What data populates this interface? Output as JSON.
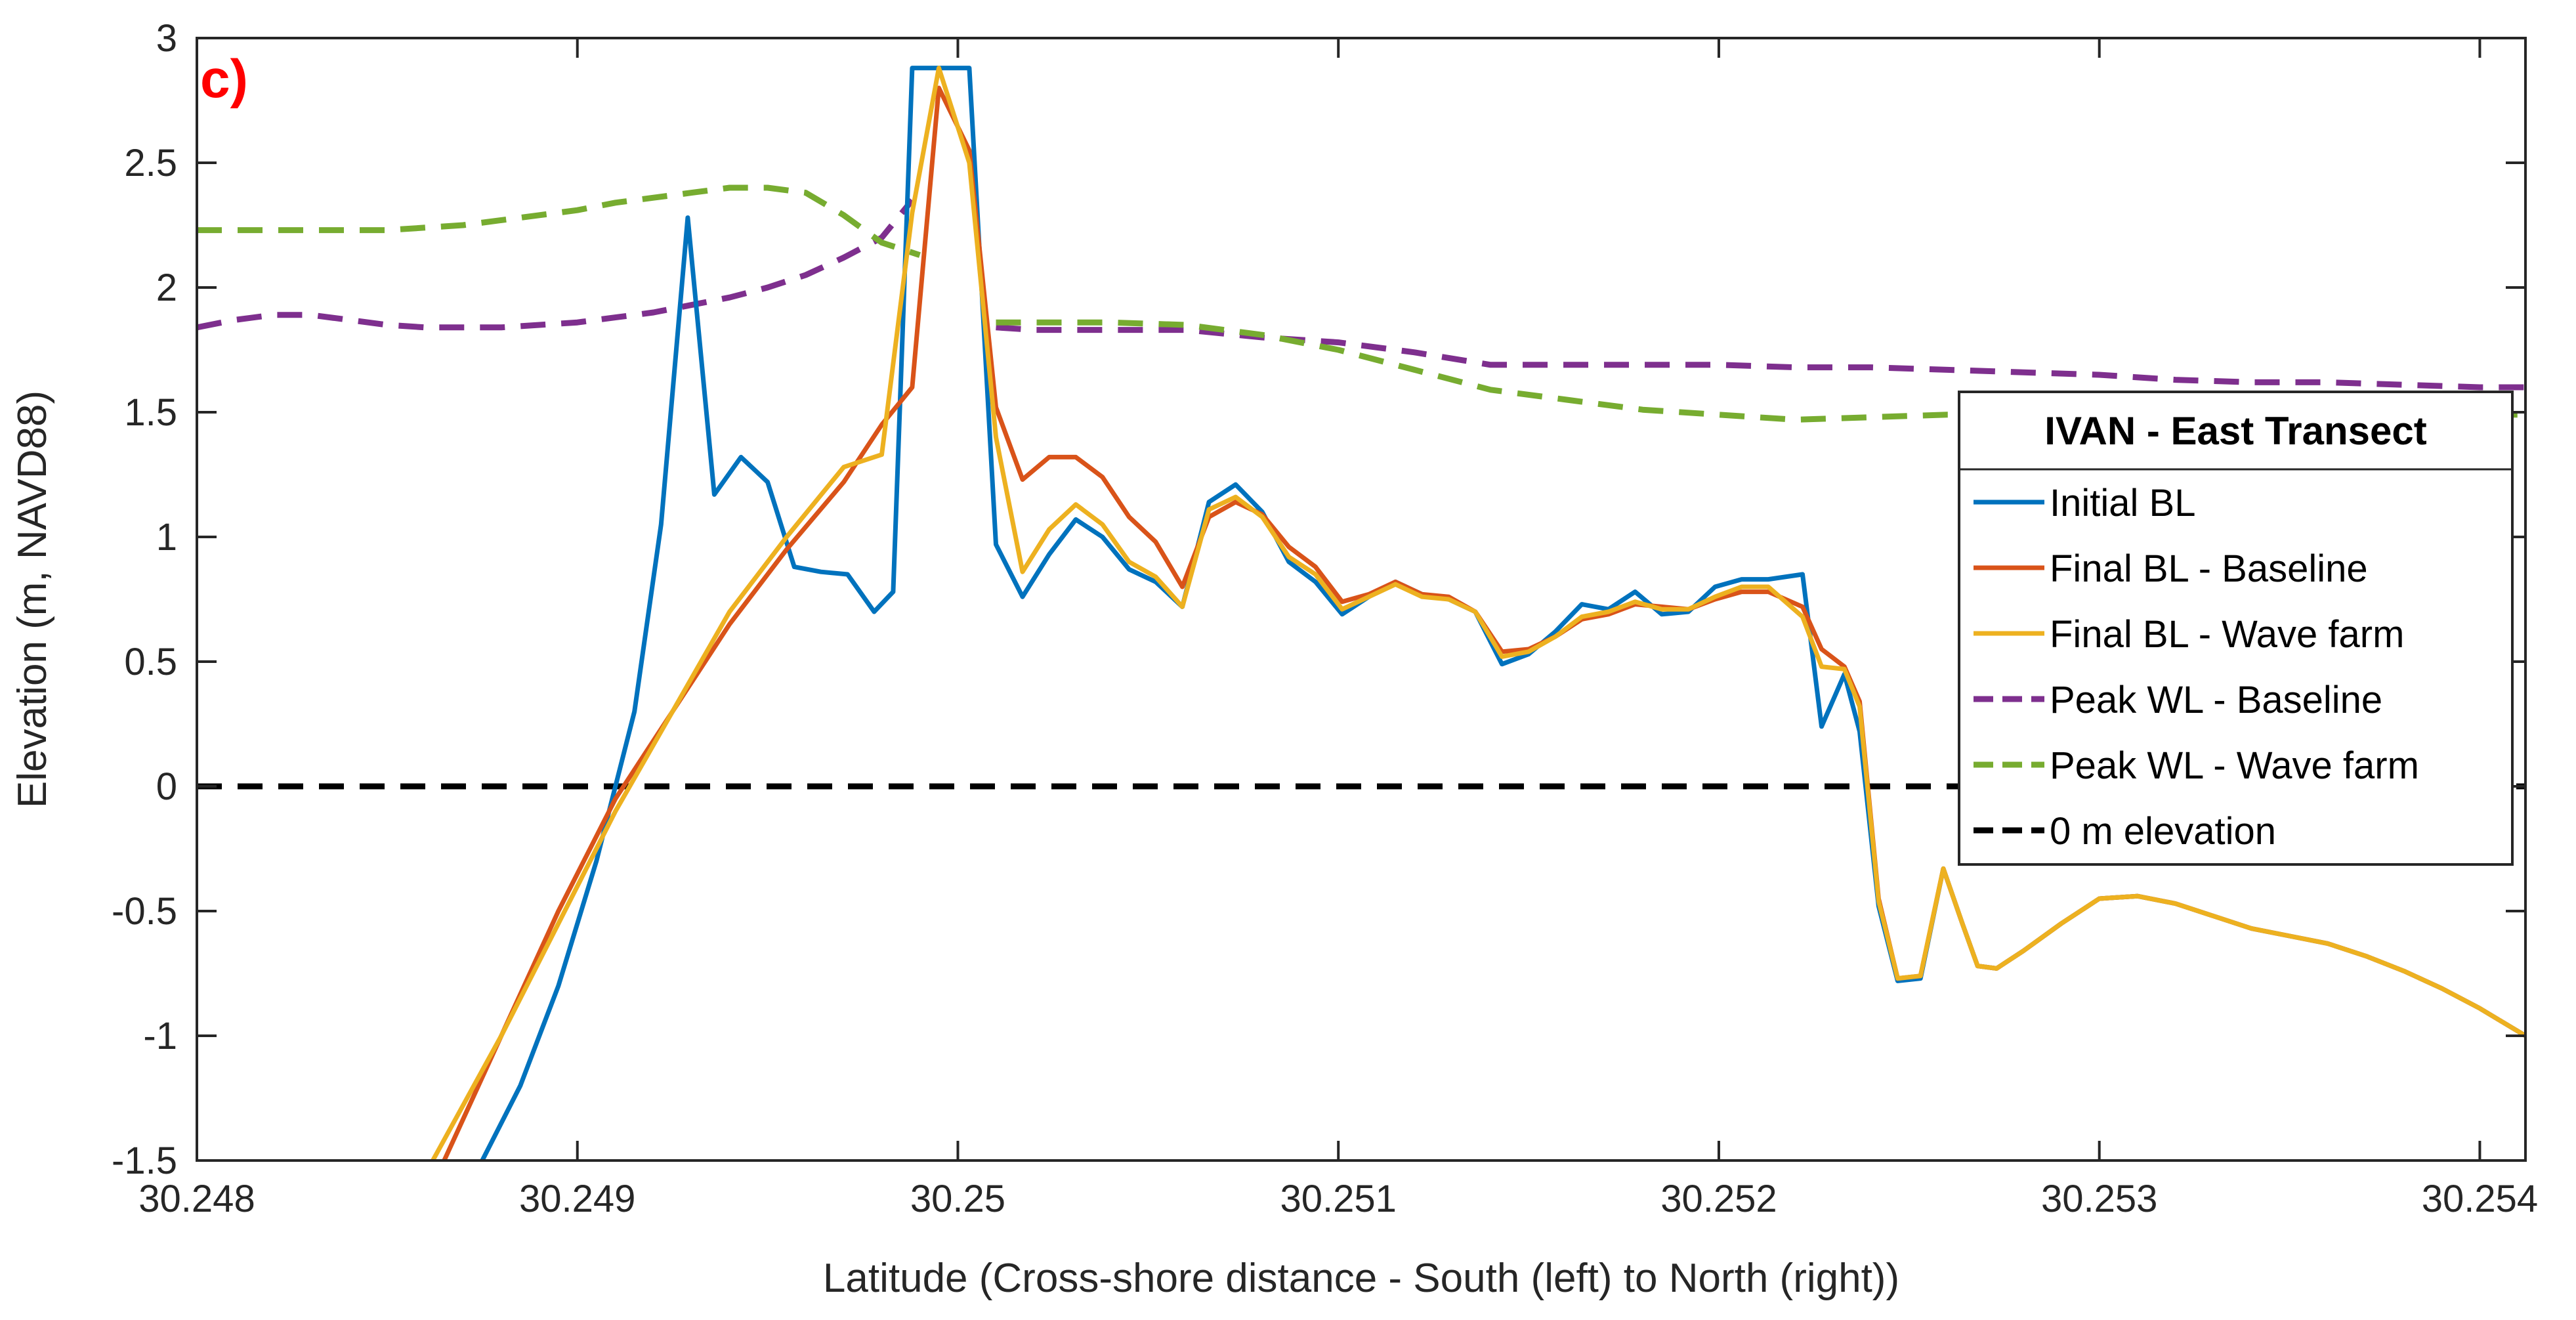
{
  "chart_data": {
    "type": "line",
    "panel_label": "c)",
    "xlabel": "Latitude (Cross-shore distance - South (left) to North (right))",
    "ylabel": "Elevation (m, NAVD88)",
    "xlim": [
      30.248,
      30.25412
    ],
    "ylim": [
      -1.5,
      3
    ],
    "x_ticks": [
      30.248,
      30.249,
      30.25,
      30.251,
      30.252,
      30.253,
      30.254
    ],
    "x_tick_labels": [
      "30.248",
      "30.249",
      "30.25",
      "30.251",
      "30.252",
      "30.253",
      "30.254"
    ],
    "y_ticks": [
      -1.5,
      -1,
      -0.5,
      0,
      0.5,
      1,
      1.5,
      2,
      2.5,
      3
    ],
    "y_tick_labels": [
      "-1.5",
      "-1",
      "-0.5",
      "0",
      "0.5",
      "1",
      "1.5",
      "2",
      "2.5",
      "3"
    ],
    "grid": false,
    "legend": {
      "title": "IVAN - East Transect",
      "placement": "right"
    },
    "series": [
      {
        "name": "Initial BL",
        "color": "#0072BD",
        "style": "solid",
        "x": [
          30.24875,
          30.24885,
          30.24895,
          30.24905,
          30.24915,
          30.24922,
          30.24929,
          30.24936,
          30.24943,
          30.2495,
          30.24957,
          30.24964,
          30.24971,
          30.24978,
          30.24983,
          30.24988,
          30.24993,
          30.25003,
          30.2501,
          30.25017,
          30.25024,
          30.25031,
          30.25038,
          30.25045,
          30.25052,
          30.25059,
          30.25066,
          30.25073,
          30.2508,
          30.25087,
          30.25094,
          30.25101,
          30.25108,
          30.25115,
          30.25122,
          30.25129,
          30.25136,
          30.25143,
          30.2515,
          30.25157,
          30.25164,
          30.25171,
          30.25178,
          30.25185,
          30.25192,
          30.25199,
          30.25206,
          30.25213,
          30.25222,
          30.25227,
          30.25233,
          30.25237,
          30.25242,
          30.25247,
          30.25253,
          30.25259,
          30.25264,
          30.25268,
          30.25273,
          30.2528,
          30.2529,
          30.253,
          30.2531,
          30.2532,
          30.2533,
          30.2534,
          30.2535,
          30.2536,
          30.2537,
          30.2538,
          30.2539,
          30.254,
          30.25412
        ],
        "y": [
          -1.5,
          -1.2,
          -0.8,
          -0.3,
          0.3,
          1.05,
          2.28,
          1.17,
          1.32,
          1.22,
          0.88,
          0.86,
          0.85,
          0.7,
          0.78,
          2.88,
          2.88,
          2.88,
          0.97,
          0.76,
          0.93,
          1.07,
          1.0,
          0.87,
          0.82,
          0.72,
          1.14,
          1.21,
          1.1,
          0.9,
          0.82,
          0.69,
          0.76,
          0.82,
          0.77,
          0.75,
          0.7,
          0.49,
          0.53,
          0.62,
          0.73,
          0.71,
          0.78,
          0.69,
          0.7,
          0.8,
          0.83,
          0.83,
          0.85,
          0.24,
          0.45,
          0.22,
          -0.48,
          -0.78,
          -0.77,
          -0.33,
          -0.55,
          -0.72,
          -0.73,
          -0.66,
          -0.55,
          -0.45,
          -0.44,
          -0.47,
          -0.52,
          -0.57,
          -0.6,
          -0.63,
          -0.68,
          -0.74,
          -0.81,
          -0.89,
          -1.0
        ]
      },
      {
        "name": "Final BL - Baseline",
        "color": "#D95319",
        "style": "solid",
        "x": [
          30.24865,
          30.2488,
          30.24895,
          30.2491,
          30.24925,
          30.2494,
          30.24955,
          30.2497,
          30.2498,
          30.24988,
          30.24995,
          30.25003,
          30.2501,
          30.25017,
          30.25024,
          30.25031,
          30.25038,
          30.25045,
          30.25052,
          30.25059,
          30.25066,
          30.25073,
          30.2508,
          30.25087,
          30.25094,
          30.25101,
          30.25108,
          30.25115,
          30.25122,
          30.25129,
          30.25136,
          30.25143,
          30.2515,
          30.25157,
          30.25164,
          30.25171,
          30.25178,
          30.25185,
          30.25192,
          30.25199,
          30.25206,
          30.25213,
          30.25222,
          30.25227,
          30.25233,
          30.25237,
          30.25242,
          30.25247,
          30.25253,
          30.25259,
          30.25264,
          30.25268,
          30.25273,
          30.2528,
          30.2529,
          30.253,
          30.2531,
          30.2532,
          30.2533,
          30.2534,
          30.2535,
          30.2536,
          30.2537,
          30.2538,
          30.2539,
          30.254,
          30.25412
        ],
        "y": [
          -1.5,
          -1.0,
          -0.5,
          -0.05,
          0.3,
          0.65,
          0.95,
          1.22,
          1.45,
          1.6,
          2.8,
          2.55,
          1.52,
          1.23,
          1.32,
          1.32,
          1.24,
          1.08,
          0.98,
          0.8,
          1.08,
          1.14,
          1.09,
          0.96,
          0.88,
          0.74,
          0.77,
          0.82,
          0.77,
          0.76,
          0.7,
          0.54,
          0.55,
          0.6,
          0.67,
          0.69,
          0.73,
          0.72,
          0.71,
          0.75,
          0.78,
          0.78,
          0.72,
          0.55,
          0.48,
          0.34,
          -0.45,
          -0.77,
          -0.76,
          -0.33,
          -0.55,
          -0.72,
          -0.73,
          -0.66,
          -0.55,
          -0.45,
          -0.44,
          -0.47,
          -0.52,
          -0.57,
          -0.6,
          -0.63,
          -0.68,
          -0.74,
          -0.81,
          -0.89,
          -1.0
        ]
      },
      {
        "name": "Final BL - Wave farm",
        "color": "#EDB120",
        "style": "solid",
        "x": [
          30.24862,
          30.2488,
          30.24895,
          30.2491,
          30.24925,
          30.2494,
          30.24955,
          30.2497,
          30.2498,
          30.24988,
          30.24995,
          30.25003,
          30.2501,
          30.25017,
          30.25024,
          30.25031,
          30.25038,
          30.25045,
          30.25052,
          30.25059,
          30.25066,
          30.25073,
          30.2508,
          30.25087,
          30.25094,
          30.25101,
          30.25108,
          30.25115,
          30.25122,
          30.25129,
          30.25136,
          30.25143,
          30.2515,
          30.25157,
          30.25164,
          30.25171,
          30.25178,
          30.25185,
          30.25192,
          30.25199,
          30.25206,
          30.25213,
          30.25222,
          30.25227,
          30.25233,
          30.25237,
          30.25242,
          30.25247,
          30.25253,
          30.25259,
          30.25264,
          30.25268,
          30.25273,
          30.2528,
          30.2529,
          30.253,
          30.2531,
          30.2532,
          30.2533,
          30.2534,
          30.2535,
          30.2536,
          30.2537,
          30.2538,
          30.2539,
          30.254,
          30.25412
        ],
        "y": [
          -1.5,
          -1.0,
          -0.55,
          -0.1,
          0.3,
          0.7,
          1.0,
          1.28,
          1.33,
          2.3,
          2.88,
          2.5,
          1.4,
          0.86,
          1.03,
          1.13,
          1.05,
          0.9,
          0.84,
          0.72,
          1.11,
          1.16,
          1.08,
          0.92,
          0.85,
          0.71,
          0.76,
          0.81,
          0.76,
          0.75,
          0.7,
          0.52,
          0.54,
          0.6,
          0.68,
          0.7,
          0.74,
          0.71,
          0.71,
          0.76,
          0.8,
          0.8,
          0.68,
          0.48,
          0.47,
          0.32,
          -0.46,
          -0.77,
          -0.76,
          -0.33,
          -0.55,
          -0.72,
          -0.73,
          -0.66,
          -0.55,
          -0.45,
          -0.44,
          -0.47,
          -0.52,
          -0.57,
          -0.6,
          -0.63,
          -0.68,
          -0.74,
          -0.81,
          -0.89,
          -1.0
        ]
      },
      {
        "name": "Peak WL - Baseline",
        "color": "#7E2F8E",
        "style": "dashed",
        "segments": [
          {
            "x": [
              30.248,
              30.2481,
              30.2482,
              30.2483,
              30.2484,
              30.2485,
              30.2486,
              30.2487,
              30.2488,
              30.2489,
              30.249,
              30.2491,
              30.2492,
              30.2493,
              30.2494,
              30.2495,
              30.2496,
              30.2497,
              30.2498,
              30.24988
            ],
            "y": [
              1.84,
              1.87,
              1.89,
              1.89,
              1.87,
              1.85,
              1.84,
              1.84,
              1.84,
              1.85,
              1.86,
              1.88,
              1.9,
              1.93,
              1.96,
              2.0,
              2.05,
              2.12,
              2.2,
              2.35
            ]
          },
          {
            "x": [
              30.2501,
              30.2502,
              30.2504,
              30.2506,
              30.2508,
              30.251,
              30.2512,
              30.2514,
              30.2516,
              30.2518,
              30.252,
              30.2522,
              30.2524,
              30.2526,
              30.2528,
              30.253,
              30.2532,
              30.2534,
              30.2536,
              30.2538,
              30.254,
              30.25412
            ],
            "y": [
              1.84,
              1.83,
              1.83,
              1.83,
              1.8,
              1.78,
              1.74,
              1.69,
              1.69,
              1.69,
              1.69,
              1.68,
              1.68,
              1.67,
              1.66,
              1.65,
              1.63,
              1.62,
              1.62,
              1.61,
              1.6,
              1.6
            ]
          }
        ]
      },
      {
        "name": "Peak WL - Wave farm",
        "color": "#77AC30",
        "style": "dashed",
        "segments": [
          {
            "x": [
              30.248,
              30.2481,
              30.2482,
              30.2483,
              30.2484,
              30.2485,
              30.2486,
              30.2487,
              30.2488,
              30.2489,
              30.249,
              30.2491,
              30.2492,
              30.2493,
              30.2494,
              30.2495,
              30.2496,
              30.2497,
              30.2498,
              30.2499
            ],
            "y": [
              2.23,
              2.23,
              2.23,
              2.23,
              2.23,
              2.23,
              2.24,
              2.25,
              2.27,
              2.29,
              2.31,
              2.34,
              2.36,
              2.38,
              2.4,
              2.4,
              2.38,
              2.29,
              2.18,
              2.13
            ]
          },
          {
            "x": [
              30.2501,
              30.2502,
              30.2504,
              30.2506,
              30.2508,
              30.251,
              30.2512,
              30.2514,
              30.2516,
              30.2518,
              30.252,
              30.2522,
              30.2524,
              30.2526,
              30.2528,
              30.253,
              30.2532,
              30.2534,
              30.2536,
              30.2538,
              30.254,
              30.25412
            ],
            "y": [
              1.86,
              1.86,
              1.86,
              1.85,
              1.81,
              1.75,
              1.67,
              1.59,
              1.55,
              1.51,
              1.49,
              1.47,
              1.48,
              1.49,
              1.49,
              1.49,
              1.49,
              1.49,
              1.49,
              1.49,
              1.49,
              1.49
            ]
          }
        ]
      },
      {
        "name": "0 m elevation",
        "color": "#000000",
        "style": "dashed",
        "x": [
          30.248,
          30.25412
        ],
        "y": [
          0,
          0
        ]
      }
    ]
  }
}
